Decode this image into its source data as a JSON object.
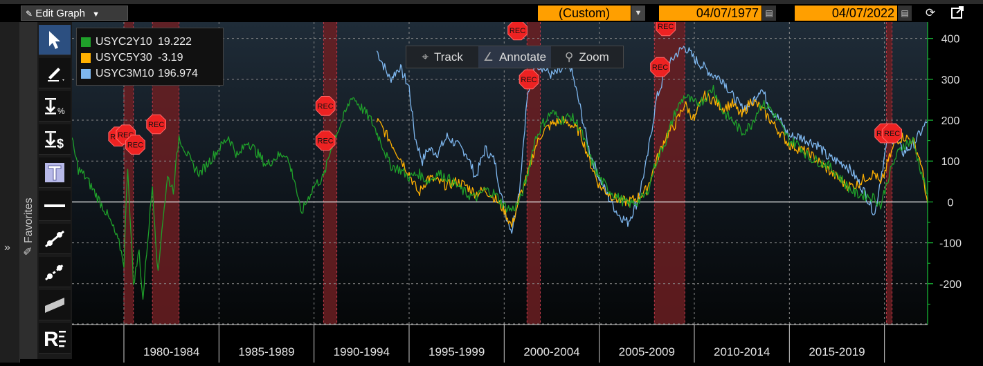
{
  "toolbar": {
    "edit_graph_label": "Edit Graph",
    "period_select": "(Custom)",
    "start_date": "04/07/1977",
    "end_date": "04/07/2022",
    "icons": [
      "edit-graph-icon",
      "calendar-icon",
      "refresh-icon",
      "popout-icon"
    ]
  },
  "sidebar": {
    "favorites_label": "Favorites",
    "tools": [
      {
        "name": "select-arrow-tool",
        "icon": "pointer-icon",
        "active": true
      },
      {
        "name": "draw-pen-tool",
        "icon": "pen-icon",
        "active": false
      },
      {
        "name": "percent-level-tool",
        "icon": "percent-line-icon",
        "active": false
      },
      {
        "name": "price-level-tool",
        "icon": "dollar-line-icon",
        "active": false
      },
      {
        "name": "text-tool",
        "icon": "text-icon",
        "active": false
      },
      {
        "name": "horizontal-line-tool",
        "icon": "hline-icon",
        "active": false
      },
      {
        "name": "trend-line-tool",
        "icon": "trendline-icon",
        "active": false
      },
      {
        "name": "ray-line-tool",
        "icon": "ray-icon",
        "active": false
      },
      {
        "name": "channel-tool",
        "icon": "channel-icon",
        "active": false
      },
      {
        "name": "regression-tool",
        "icon": "regression-icon",
        "active": false
      }
    ]
  },
  "modes": [
    {
      "label": "Track",
      "icon": "crosshair-icon",
      "selected": false
    },
    {
      "label": "Annotate",
      "icon": "pen-icon",
      "selected": true
    },
    {
      "label": "Zoom",
      "icon": "magnifier-icon",
      "selected": false
    }
  ],
  "recession_label": "REC",
  "colors": {
    "USYC2Y10": "#1fa12a",
    "USYC5Y30": "#ffb000",
    "USYC3M10": "#7fb8f0",
    "recession": "#6b1e22",
    "axis": "#19c23a",
    "rec_marker": "#ee2222"
  },
  "chart_data": {
    "type": "line",
    "title": "",
    "legend_position": "top-left",
    "ylim": [
      -300,
      440
    ],
    "yticks": [
      400,
      300,
      200,
      100,
      0,
      -100,
      -200
    ],
    "xlim": [
      1977.27,
      2022.27
    ],
    "xtick_labels": [
      "1980-1984",
      "1985-1989",
      "1990-1994",
      "1995-1999",
      "2000-2004",
      "2005-2009",
      "2010-2014",
      "2015-2019"
    ],
    "xtick_bounds": [
      1980,
      1985,
      1990,
      1995,
      2000,
      2005,
      2010,
      2015,
      2020
    ],
    "recessions": [
      [
        1980.0,
        1980.5
      ],
      [
        1981.5,
        1982.9
      ],
      [
        1990.5,
        1991.2
      ],
      [
        2001.2,
        2001.9
      ],
      [
        2007.9,
        2009.5
      ],
      [
        2020.1,
        2020.4
      ]
    ],
    "series": [
      {
        "name": "USYC2Y10",
        "last_value": "19.222",
        "x": [
          1977.27,
          1977.6,
          1978.0,
          1978.5,
          1979.0,
          1979.4,
          1979.8,
          1980.0,
          1980.2,
          1980.5,
          1980.8,
          1981.0,
          1981.2,
          1981.5,
          1981.8,
          1982.0,
          1982.3,
          1982.6,
          1982.9,
          1983.2,
          1983.6,
          1984.0,
          1984.5,
          1985.0,
          1985.5,
          1986.0,
          1986.5,
          1987.0,
          1987.5,
          1988.0,
          1988.5,
          1989.0,
          1989.3,
          1989.7,
          1990.0,
          1990.5,
          1991.0,
          1991.5,
          1992.0,
          1992.5,
          1993.0,
          1993.5,
          1994.0,
          1994.5,
          1995.0,
          1995.5,
          1996.0,
          1996.5,
          1997.0,
          1997.5,
          1998.0,
          1998.5,
          1999.0,
          1999.5,
          2000.0,
          2000.4,
          2000.8,
          2001.2,
          2001.6,
          2002.0,
          2002.5,
          2003.0,
          2003.5,
          2004.0,
          2004.5,
          2005.0,
          2005.5,
          2006.0,
          2006.5,
          2007.0,
          2007.5,
          2008.0,
          2008.5,
          2009.0,
          2009.5,
          2010.0,
          2010.5,
          2011.0,
          2011.5,
          2012.0,
          2012.5,
          2013.0,
          2013.5,
          2014.0,
          2014.5,
          2015.0,
          2015.5,
          2016.0,
          2016.5,
          2017.0,
          2017.5,
          2018.0,
          2018.5,
          2019.0,
          2019.5,
          2019.8,
          2020.2,
          2020.6,
          2021.0,
          2021.5,
          2021.9,
          2022.27
        ],
        "values": [
          150,
          80,
          60,
          20,
          -20,
          -60,
          -110,
          -150,
          90,
          -200,
          -120,
          -240,
          -120,
          40,
          -180,
          -60,
          60,
          30,
          160,
          130,
          90,
          70,
          100,
          130,
          160,
          110,
          150,
          120,
          90,
          110,
          120,
          50,
          -30,
          10,
          40,
          60,
          150,
          200,
          260,
          230,
          200,
          150,
          90,
          80,
          60,
          70,
          50,
          70,
          60,
          40,
          20,
          10,
          30,
          20,
          -10,
          -20,
          0,
          60,
          150,
          190,
          220,
          200,
          210,
          180,
          110,
          60,
          30,
          10,
          -5,
          0,
          20,
          100,
          150,
          220,
          260,
          240,
          250,
          280,
          220,
          200,
          170,
          190,
          240,
          230,
          190,
          150,
          140,
          110,
          100,
          90,
          70,
          40,
          20,
          15,
          10,
          -10,
          60,
          110,
          140,
          150,
          80,
          19
        ]
      },
      {
        "name": "USYC5Y30",
        "last_value": "-3.19",
        "x": [
          1993.3,
          1993.6,
          1994.0,
          1994.5,
          1995.0,
          1995.5,
          1996.0,
          1996.5,
          1997.0,
          1997.5,
          1998.0,
          1998.5,
          1999.0,
          1999.5,
          2000.0,
          2000.4,
          2000.8,
          2001.2,
          2001.6,
          2002.0,
          2002.5,
          2003.0,
          2003.5,
          2004.0,
          2004.5,
          2005.0,
          2005.5,
          2006.0,
          2006.5,
          2007.0,
          2007.5,
          2008.0,
          2008.5,
          2009.0,
          2009.5,
          2010.0,
          2010.5,
          2011.0,
          2011.5,
          2012.0,
          2012.5,
          2013.0,
          2013.5,
          2014.0,
          2014.5,
          2015.0,
          2015.5,
          2016.0,
          2016.5,
          2017.0,
          2017.5,
          2018.0,
          2018.5,
          2019.0,
          2019.5,
          2019.8,
          2020.2,
          2020.6,
          2021.0,
          2021.5,
          2021.9,
          2022.27
        ],
        "values": [
          200,
          180,
          150,
          110,
          70,
          20,
          60,
          50,
          40,
          50,
          40,
          20,
          30,
          10,
          -20,
          -60,
          10,
          60,
          130,
          170,
          190,
          200,
          190,
          170,
          100,
          40,
          20,
          5,
          0,
          10,
          30,
          100,
          160,
          190,
          240,
          200,
          260,
          250,
          230,
          240,
          210,
          250,
          230,
          200,
          170,
          140,
          130,
          120,
          100,
          80,
          60,
          40,
          40,
          60,
          70,
          40,
          100,
          150,
          160,
          150,
          100,
          -3
        ]
      },
      {
        "name": "USYC3M10",
        "last_value": "196.974",
        "x": [
          1993.3,
          1993.6,
          1994.0,
          1994.5,
          1995.0,
          1995.3,
          1995.7,
          1996.0,
          1996.5,
          1997.0,
          1997.5,
          1998.0,
          1998.5,
          1999.0,
          1999.5,
          2000.0,
          2000.4,
          2000.8,
          2001.2,
          2001.6,
          2002.0,
          2002.5,
          2003.0,
          2003.5,
          2004.0,
          2004.5,
          2005.0,
          2005.5,
          2006.0,
          2006.5,
          2007.0,
          2007.5,
          2008.0,
          2008.5,
          2009.0,
          2009.5,
          2010.0,
          2010.5,
          2011.0,
          2011.5,
          2012.0,
          2012.5,
          2013.0,
          2013.5,
          2014.0,
          2014.5,
          2015.0,
          2015.5,
          2016.0,
          2016.5,
          2017.0,
          2017.5,
          2018.0,
          2018.5,
          2019.0,
          2019.5,
          2019.8,
          2020.2,
          2020.6,
          2021.0,
          2021.5,
          2021.9,
          2022.27
        ],
        "values": [
          370,
          340,
          300,
          330,
          280,
          160,
          100,
          130,
          120,
          160,
          140,
          120,
          60,
          130,
          100,
          -20,
          -70,
          30,
          250,
          340,
          330,
          310,
          320,
          330,
          230,
          120,
          60,
          10,
          -30,
          -50,
          0,
          100,
          250,
          320,
          360,
          380,
          350,
          330,
          310,
          300,
          260,
          230,
          240,
          280,
          230,
          200,
          160,
          160,
          150,
          140,
          110,
          100,
          90,
          60,
          20,
          -30,
          60,
          160,
          150,
          120,
          140,
          170,
          197
        ]
      }
    ]
  }
}
